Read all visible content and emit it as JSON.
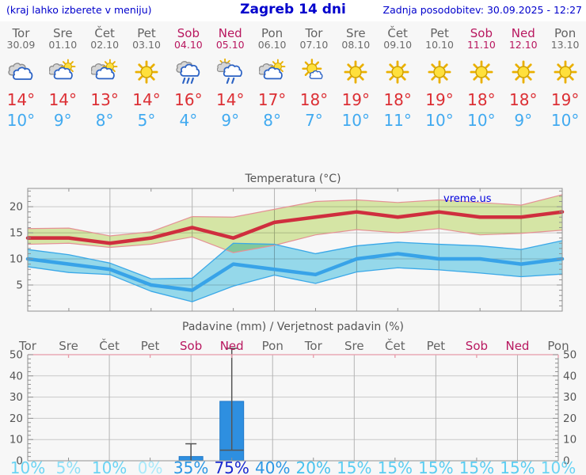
{
  "header": {
    "left_note": "(kraj lahko izberete v meniju)",
    "title": "Zagreb 14 dni",
    "updated": "Zadnja posodobitev: 30.09.2025 - 12:27"
  },
  "days": [
    {
      "name": "Tor",
      "date": "30.09",
      "weekend": false,
      "icon": "cloudy",
      "tmax": "14°",
      "tmin": "10°"
    },
    {
      "name": "Sre",
      "date": "01.10",
      "weekend": false,
      "icon": "partly-cloudy",
      "tmax": "14°",
      "tmin": "9°"
    },
    {
      "name": "Čet",
      "date": "02.10",
      "weekend": false,
      "icon": "partly-cloudy",
      "tmax": "13°",
      "tmin": "8°"
    },
    {
      "name": "Pet",
      "date": "03.10",
      "weekend": false,
      "icon": "sunny",
      "tmax": "14°",
      "tmin": "5°"
    },
    {
      "name": "Sob",
      "date": "04.10",
      "weekend": true,
      "icon": "rain",
      "tmax": "16°",
      "tmin": "4°"
    },
    {
      "name": "Ned",
      "date": "05.10",
      "weekend": true,
      "icon": "sun-shower",
      "tmax": "14°",
      "tmin": "9°"
    },
    {
      "name": "Pon",
      "date": "06.10",
      "weekend": false,
      "icon": "partly-cloudy",
      "tmax": "17°",
      "tmin": "8°"
    },
    {
      "name": "Tor",
      "date": "07.10",
      "weekend": false,
      "icon": "mostly-sunny",
      "tmax": "18°",
      "tmin": "7°"
    },
    {
      "name": "Sre",
      "date": "08.10",
      "weekend": false,
      "icon": "sunny",
      "tmax": "19°",
      "tmin": "10°"
    },
    {
      "name": "Čet",
      "date": "09.10",
      "weekend": false,
      "icon": "sunny",
      "tmax": "18°",
      "tmin": "11°"
    },
    {
      "name": "Pet",
      "date": "10.10",
      "weekend": false,
      "icon": "sunny",
      "tmax": "19°",
      "tmin": "10°"
    },
    {
      "name": "Sob",
      "date": "11.10",
      "weekend": true,
      "icon": "sunny",
      "tmax": "18°",
      "tmin": "10°"
    },
    {
      "name": "Ned",
      "date": "12.10",
      "weekend": true,
      "icon": "sunny",
      "tmax": "18°",
      "tmin": "9°"
    },
    {
      "name": "Pon",
      "date": "13.10",
      "weekend": false,
      "icon": "sunny",
      "tmax": "19°",
      "tmin": "10°"
    }
  ],
  "chart_data": [
    {
      "type": "line",
      "title": "Temperatura (°C)",
      "watermark": "vreme.us",
      "categories": [
        "Tor",
        "Sre",
        "Čet",
        "Pet",
        "Sob",
        "Ned",
        "Pon",
        "Tor",
        "Sre",
        "Čet",
        "Pet",
        "Sob",
        "Ned",
        "Pon"
      ],
      "ylim": [
        0,
        23.5
      ],
      "yticks": [
        5,
        10,
        15,
        20
      ],
      "grid_day_indices": [
        2,
        4,
        6,
        8,
        10,
        12
      ],
      "series": [
        {
          "name": "temp-max",
          "values": [
            14,
            14,
            13,
            14,
            16,
            14,
            17,
            18,
            19,
            18,
            19,
            18,
            18,
            19
          ],
          "band_hi": [
            15.8,
            15.9,
            14.4,
            15.2,
            18.1,
            18.0,
            19.5,
            21.0,
            21.3,
            20.8,
            21.3,
            20.8,
            20.3,
            22.3
          ],
          "band_lo": [
            12.8,
            13.0,
            12.2,
            12.8,
            14.2,
            11.2,
            12.6,
            14.6,
            15.6,
            15.0,
            15.8,
            14.6,
            14.9,
            15.5
          ]
        },
        {
          "name": "temp-min",
          "values": [
            10,
            9,
            8,
            5,
            4,
            9,
            8,
            7,
            10,
            11,
            10,
            10,
            9,
            10
          ],
          "band_hi": [
            11.8,
            10.8,
            9.2,
            6.2,
            6.3,
            13.0,
            12.8,
            11.0,
            12.5,
            13.2,
            12.8,
            12.5,
            11.8,
            13.5
          ],
          "band_lo": [
            8.5,
            7.4,
            7.0,
            3.8,
            1.8,
            4.8,
            6.9,
            5.3,
            7.5,
            8.3,
            7.9,
            7.3,
            6.6,
            7.1
          ]
        }
      ]
    },
    {
      "type": "bar",
      "title": "Padavine (mm) / Verjetnost padavin (%)",
      "day_labels": [
        "Tor",
        "Sre",
        "Čet",
        "Pet",
        "Sob",
        "Ned",
        "Pon",
        "Tor",
        "Sre",
        "Čet",
        "Pet",
        "Sob",
        "Ned",
        "Pon"
      ],
      "weekend_indices": [
        4,
        5,
        11,
        12
      ],
      "ylim": [
        0,
        50
      ],
      "yticks": [
        0,
        10,
        20,
        30,
        40,
        50
      ],
      "grid_day_indices": [
        2,
        4,
        6,
        8,
        10,
        12
      ],
      "bars": [
        {
          "day_index": 4,
          "amount_mm": 2,
          "whisker_lo": 0,
          "whisker_hi": 8
        },
        {
          "day_index": 5,
          "amount_mm": 28,
          "whisker_lo": 5,
          "whisker_hi": 53
        }
      ],
      "probabilities": [
        10,
        5,
        10,
        0,
        35,
        75,
        40,
        20,
        15,
        15,
        15,
        15,
        15,
        10
      ],
      "probability_suffix": "%"
    }
  ],
  "colors": {
    "header_blue": "#0000cc",
    "weekday_text": "#636363",
    "weekend_text": "#b8175f",
    "tmax_text": "#dc2f34",
    "tmin_text": "#41aaf0",
    "temp_max_line": "#cf2e3e",
    "temp_max_band": "#dcedaa",
    "temp_max_band_edge": "#e59195",
    "temp_min_line": "#38a3e8",
    "temp_min_band": "#9adff2",
    "temp_min_band_edge": "#3aa8e8",
    "bar_fill": "#2e8fe0",
    "bar_edge": "#2079c9",
    "whisker": "#555555",
    "grid": "#c9c9c9",
    "vgrid": "#b4b4b4",
    "border": "#909090",
    "precip_top_border": "#e79aa8",
    "axis_text": "#555555",
    "watermark": "#0000dd",
    "prob_scale": [
      [
        75,
        "#1728cf"
      ],
      [
        35,
        "#2b97e5"
      ],
      [
        20,
        "#47c2ef"
      ],
      [
        15,
        "#5acdf2"
      ],
      [
        10,
        "#6bd4f4"
      ],
      [
        5,
        "#8ddff7"
      ],
      [
        0,
        "#a9e9fa"
      ]
    ]
  }
}
